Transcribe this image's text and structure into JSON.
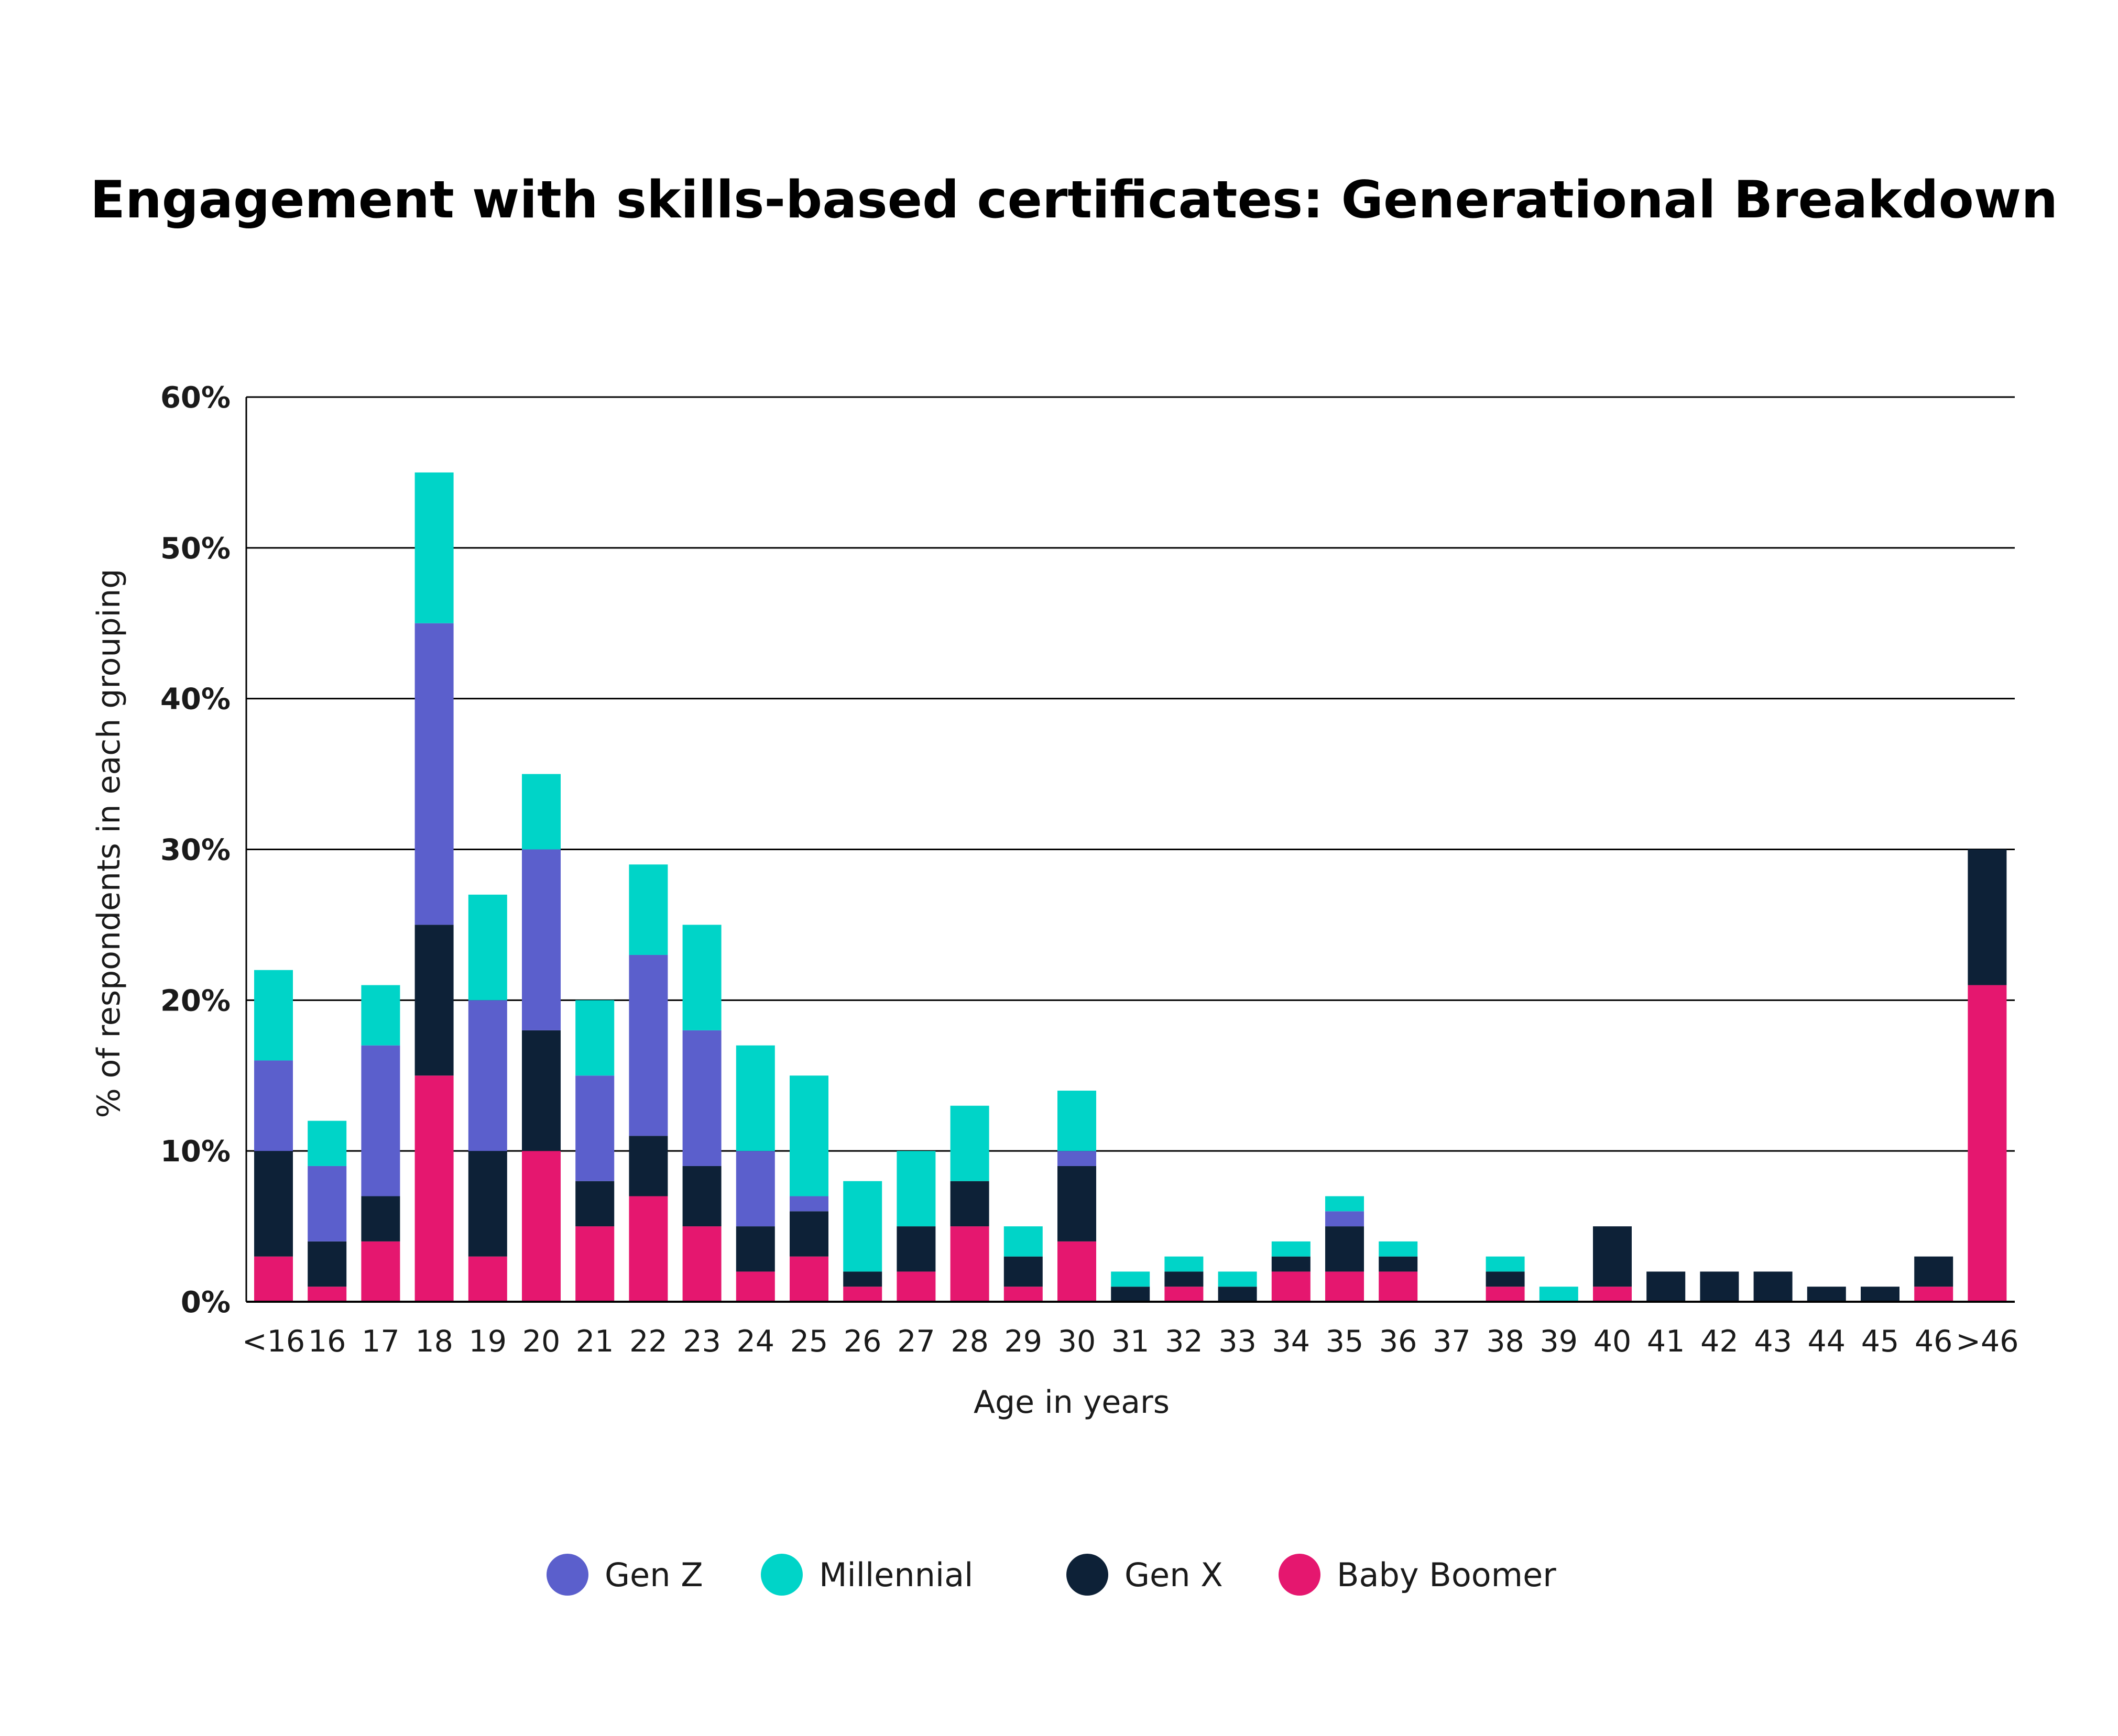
{
  "chart_data": {
    "type": "bar",
    "stacked": true,
    "title": "Engagement with skills-based certificates: Generational Breakdown",
    "xlabel": "Age in years",
    "ylabel": "% of respondents in each grouping",
    "ylim": [
      0,
      60
    ],
    "yticks": [
      "0%",
      "10%",
      "20%",
      "30%",
      "40%",
      "50%",
      "60%"
    ],
    "grid": true,
    "legend_position": "bottom",
    "categories": [
      "<16",
      "16",
      "17",
      "18",
      "19",
      "20",
      "21",
      "22",
      "23",
      "24",
      "25",
      "26",
      "27",
      "28",
      "29",
      "30",
      "31",
      "32",
      "33",
      "34",
      "35",
      "36",
      "37",
      "38",
      "39",
      "40",
      "41",
      "42",
      "43",
      "44",
      "45",
      "46",
      ">46"
    ],
    "series": [
      {
        "name": "Baby Boomer",
        "color": "#E5176F",
        "values": [
          3,
          1,
          4,
          15,
          3,
          10,
          5,
          7,
          5,
          2,
          3,
          1,
          2,
          5,
          1,
          4,
          0,
          1,
          0,
          2,
          2,
          2,
          0,
          1,
          0,
          1,
          0,
          0,
          0,
          0,
          0,
          1,
          21
        ]
      },
      {
        "name": "Gen X",
        "color": "#0D2137",
        "values": [
          7,
          3,
          3,
          10,
          7,
          8,
          3,
          4,
          4,
          3,
          3,
          1,
          3,
          3,
          2,
          5,
          1,
          1,
          1,
          1,
          3,
          1,
          0,
          1,
          0,
          4,
          2,
          2,
          2,
          1,
          1,
          2,
          9
        ]
      },
      {
        "name": "Gen Z",
        "color": "#5B5FCC",
        "values": [
          6,
          5,
          10,
          20,
          10,
          12,
          7,
          12,
          9,
          5,
          1,
          0,
          0,
          0,
          0,
          1,
          0,
          0,
          0,
          0,
          1,
          0,
          0,
          0,
          0,
          0,
          0,
          0,
          0,
          0,
          0,
          0,
          0
        ]
      },
      {
        "name": "Millennial",
        "color": "#00D4C8",
        "values": [
          6,
          3,
          4,
          10,
          7,
          5,
          5,
          6,
          7,
          7,
          8,
          6,
          5,
          5,
          2,
          4,
          1,
          1,
          1,
          1,
          1,
          1,
          0,
          1,
          1,
          0,
          0,
          0,
          0,
          0,
          0,
          0,
          0
        ]
      }
    ],
    "legend": [
      {
        "name": "Gen Z",
        "color": "#5B5FCC"
      },
      {
        "name": "Millennial",
        "color": "#00D4C8"
      },
      {
        "name": "Gen X",
        "color": "#0D2137"
      },
      {
        "name": "Baby Boomer",
        "color": "#E5176F"
      }
    ]
  }
}
